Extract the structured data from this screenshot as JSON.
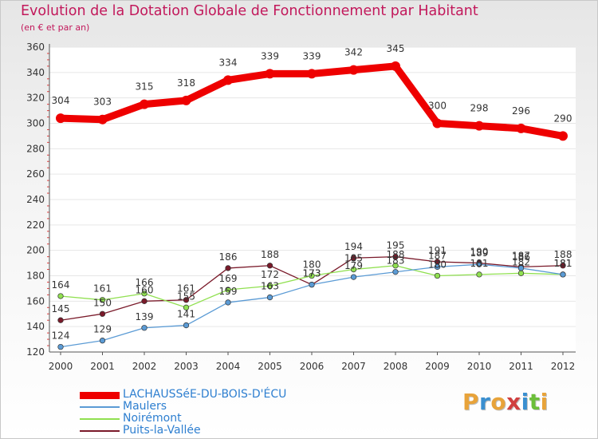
{
  "chart_data": {
    "type": "line",
    "title": "Evolution de la Dotation Globale de Fonctionnement par Habitant",
    "subtitle": "(en € et par an)",
    "xlabel": "",
    "ylabel": "",
    "ylim": [
      120,
      360
    ],
    "yticks": [
      120,
      140,
      160,
      180,
      200,
      220,
      240,
      260,
      280,
      300,
      320,
      340,
      360
    ],
    "categories": [
      "2000",
      "2001",
      "2002",
      "2003",
      "2004",
      "2005",
      "2006",
      "2007",
      "2008",
      "2009",
      "2010",
      "2011",
      "2012"
    ],
    "series": [
      {
        "name": "LACHAUSSéE-DU-BOIS-D'ÉCU",
        "color": "#ee0000",
        "values": [
          304,
          303,
          315,
          318,
          334,
          339,
          339,
          342,
          345,
          300,
          298,
          296,
          290
        ]
      },
      {
        "name": "Maulers",
        "color": "#5b9bd5",
        "values": [
          124,
          129,
          139,
          141,
          159,
          163,
          173,
          179,
          183,
          187,
          189,
          186,
          181
        ]
      },
      {
        "name": "Noirémont",
        "color": "#90e050",
        "values": [
          164,
          161,
          166,
          155,
          169,
          172,
          180,
          185,
          188,
          180,
          181,
          182,
          181
        ]
      },
      {
        "name": "Puits-la-Vallée",
        "color": "#7a1a2a",
        "values": [
          145,
          150,
          160,
          161,
          186,
          188,
          173,
          194,
          195,
          191,
          190,
          187,
          188
        ]
      }
    ]
  },
  "legend": {
    "placement": "bottom-left"
  },
  "logo": {
    "text": "Proxiti",
    "letter_colors": [
      "#e8a33a",
      "#3a8fd0",
      "#e8a33a",
      "#d04040",
      "#3a8fd0",
      "#6cbf3a",
      "#e8a33a"
    ]
  }
}
